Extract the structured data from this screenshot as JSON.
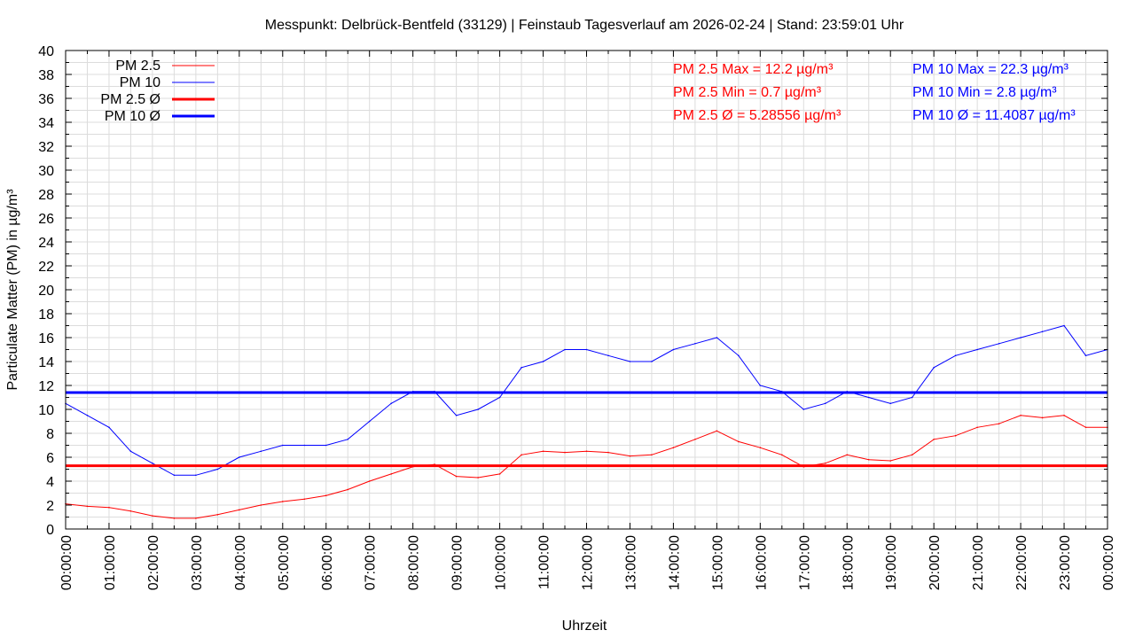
{
  "chart_data": {
    "type": "line",
    "title": "Messpunkt: Delbrück-Bentfeld (33129) | Feinstaub Tagesverlauf am 2026-02-24 | Stand: 23:59:01 Uhr",
    "xlabel": "Uhrzeit",
    "ylabel": "Particulate Matter (PM) in µg/m³",
    "ylim": [
      0,
      40
    ],
    "xlim_hours": [
      0,
      24
    ],
    "grid": true,
    "legend_placement": "top-left",
    "y_ticks": [
      "0",
      "2",
      "4",
      "6",
      "8",
      "10",
      "12",
      "14",
      "16",
      "18",
      "20",
      "22",
      "24",
      "26",
      "28",
      "30",
      "32",
      "34",
      "36",
      "38",
      "40"
    ],
    "x_ticks": [
      "00:00:00",
      "01:00:00",
      "02:00:00",
      "03:00:00",
      "04:00:00",
      "05:00:00",
      "06:00:00",
      "07:00:00",
      "08:00:00",
      "09:00:00",
      "10:00:00",
      "11:00:00",
      "12:00:00",
      "13:00:00",
      "14:00:00",
      "15:00:00",
      "16:00:00",
      "17:00:00",
      "18:00:00",
      "19:00:00",
      "20:00:00",
      "21:00:00",
      "22:00:00",
      "23:00:00",
      "00:00:00"
    ],
    "x_hours": [
      0,
      0.5,
      1,
      1.5,
      2,
      2.5,
      3,
      3.5,
      4,
      4.5,
      5,
      5.5,
      6,
      6.5,
      7,
      7.5,
      8,
      8.5,
      9,
      9.5,
      10,
      10.5,
      11,
      11.5,
      12,
      12.5,
      13,
      13.5,
      14,
      14.5,
      15,
      15.5,
      16,
      16.5,
      17,
      17.5,
      18,
      18.5,
      19,
      19.5,
      20,
      20.5,
      21,
      21.5,
      22,
      22.5,
      23,
      23.5,
      24
    ],
    "series": [
      {
        "name": "PM 2.5",
        "color": "#ff0000",
        "values": [
          2.1,
          1.9,
          1.8,
          1.5,
          1.1,
          0.9,
          0.9,
          1.2,
          1.6,
          2.0,
          2.3,
          2.5,
          2.8,
          3.3,
          4.0,
          4.6,
          5.2,
          5.4,
          4.4,
          4.3,
          4.6,
          6.2,
          6.5,
          6.4,
          6.5,
          6.4,
          6.1,
          6.2,
          6.8,
          7.5,
          8.2,
          7.3,
          6.8,
          6.2,
          5.2,
          5.5,
          6.2,
          5.8,
          5.7,
          6.2,
          7.5,
          7.8,
          8.5,
          8.8,
          9.5,
          9.3,
          9.5,
          8.5,
          8.5
        ]
      },
      {
        "name": "PM 10",
        "color": "#0000ff",
        "values": [
          10.5,
          9.5,
          8.5,
          6.5,
          5.5,
          4.5,
          4.5,
          5.0,
          6.0,
          6.5,
          7.0,
          7.0,
          7.0,
          7.5,
          9.0,
          10.5,
          11.5,
          11.5,
          9.5,
          10.0,
          11.0,
          13.5,
          14.0,
          15.0,
          15.0,
          14.5,
          14.0,
          14.0,
          15.0,
          15.5,
          16.0,
          14.5,
          12.0,
          11.5,
          10.0,
          10.5,
          11.5,
          11.0,
          10.5,
          11.0,
          13.5,
          14.5,
          15.0,
          15.5,
          16.0,
          16.5,
          17.0,
          14.5,
          15.0
        ]
      }
    ],
    "averages": [
      {
        "name": "PM 2.5 Ø",
        "color": "#ff0000",
        "value": 5.28556
      },
      {
        "name": "PM 10 Ø",
        "color": "#0000ff",
        "value": 11.4087
      }
    ],
    "annotations": {
      "pm25": [
        "PM 2.5 Max = 12.2 µg/m³",
        "PM 2.5 Min = 0.7 µg/m³",
        "PM 2.5 Ø = 5.28556 µg/m³"
      ],
      "pm10": [
        "PM 10 Max = 22.3 µg/m³",
        "PM 10 Min = 2.8 µg/m³",
        "PM 10 Ø = 11.4087 µg/m³"
      ]
    }
  }
}
